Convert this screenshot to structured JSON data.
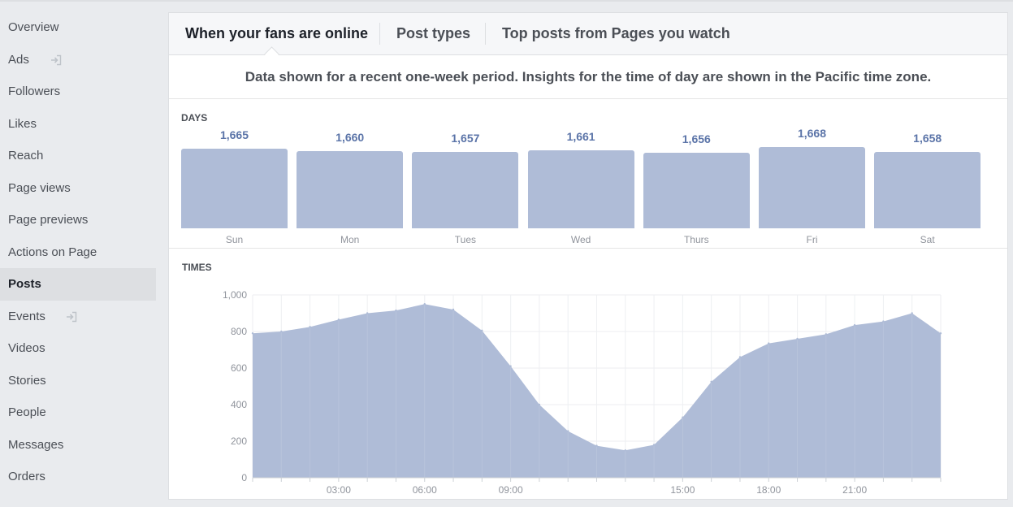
{
  "sidebar": {
    "items": [
      {
        "label": "Overview",
        "icon": null,
        "active": false
      },
      {
        "label": "Ads",
        "icon": "external-icon",
        "active": false
      },
      {
        "label": "Followers",
        "icon": null,
        "active": false
      },
      {
        "label": "Likes",
        "icon": null,
        "active": false
      },
      {
        "label": "Reach",
        "icon": null,
        "active": false
      },
      {
        "label": "Page views",
        "icon": null,
        "active": false
      },
      {
        "label": "Page previews",
        "icon": null,
        "active": false
      },
      {
        "label": "Actions on Page",
        "icon": null,
        "active": false
      },
      {
        "label": "Posts",
        "icon": null,
        "active": true
      },
      {
        "label": "Events",
        "icon": "external-icon",
        "active": false
      },
      {
        "label": "Videos",
        "icon": null,
        "active": false
      },
      {
        "label": "Stories",
        "icon": null,
        "active": false
      },
      {
        "label": "People",
        "icon": null,
        "active": false
      },
      {
        "label": "Messages",
        "icon": null,
        "active": false
      },
      {
        "label": "Orders",
        "icon": null,
        "active": false
      }
    ]
  },
  "tabs": [
    {
      "label": "When your fans are online",
      "active": true
    },
    {
      "label": "Post types",
      "active": false
    },
    {
      "label": "Top posts from Pages you watch",
      "active": false
    }
  ],
  "notice": "Data shown for a recent one-week period. Insights for the time of day are shown in the Pacific time zone.",
  "days_label": "DAYS",
  "times_label": "TIMES",
  "colors": {
    "bar": "#afbcd7",
    "value_text": "#5b74a8",
    "active_nav": "#dddfe2"
  },
  "chart_data": [
    {
      "type": "bar",
      "title": "DAYS",
      "categories": [
        "Sun",
        "Mon",
        "Tues",
        "Wed",
        "Thurs",
        "Fri",
        "Sat"
      ],
      "values": [
        1665,
        1660,
        1657,
        1661,
        1656,
        1668,
        1658
      ],
      "value_labels": [
        "1,665",
        "1,660",
        "1,657",
        "1,661",
        "1,656",
        "1,668",
        "1,658"
      ]
    },
    {
      "type": "area",
      "title": "TIMES",
      "x": [
        0,
        1,
        2,
        3,
        4,
        5,
        6,
        7,
        8,
        9,
        10,
        11,
        12,
        13,
        14,
        15,
        16,
        17,
        18,
        19,
        20,
        21,
        22,
        23,
        24
      ],
      "values": [
        790,
        800,
        825,
        865,
        900,
        915,
        950,
        920,
        805,
        610,
        400,
        255,
        175,
        150,
        180,
        330,
        525,
        660,
        735,
        760,
        785,
        835,
        855,
        900,
        790
      ],
      "xticks": [
        {
          "x": 3,
          "label": "03:00"
        },
        {
          "x": 6,
          "label": "06:00"
        },
        {
          "x": 9,
          "label": "09:00"
        },
        {
          "x": 15,
          "label": "15:00"
        },
        {
          "x": 18,
          "label": "18:00"
        },
        {
          "x": 21,
          "label": "21:00"
        }
      ],
      "yticks": [
        0,
        200,
        400,
        600,
        800,
        1000
      ],
      "ytick_labels": [
        "0",
        "200",
        "400",
        "600",
        "800",
        "1,000"
      ],
      "ylim": [
        0,
        1000
      ],
      "xlim": [
        0,
        24
      ],
      "grid": true
    }
  ]
}
